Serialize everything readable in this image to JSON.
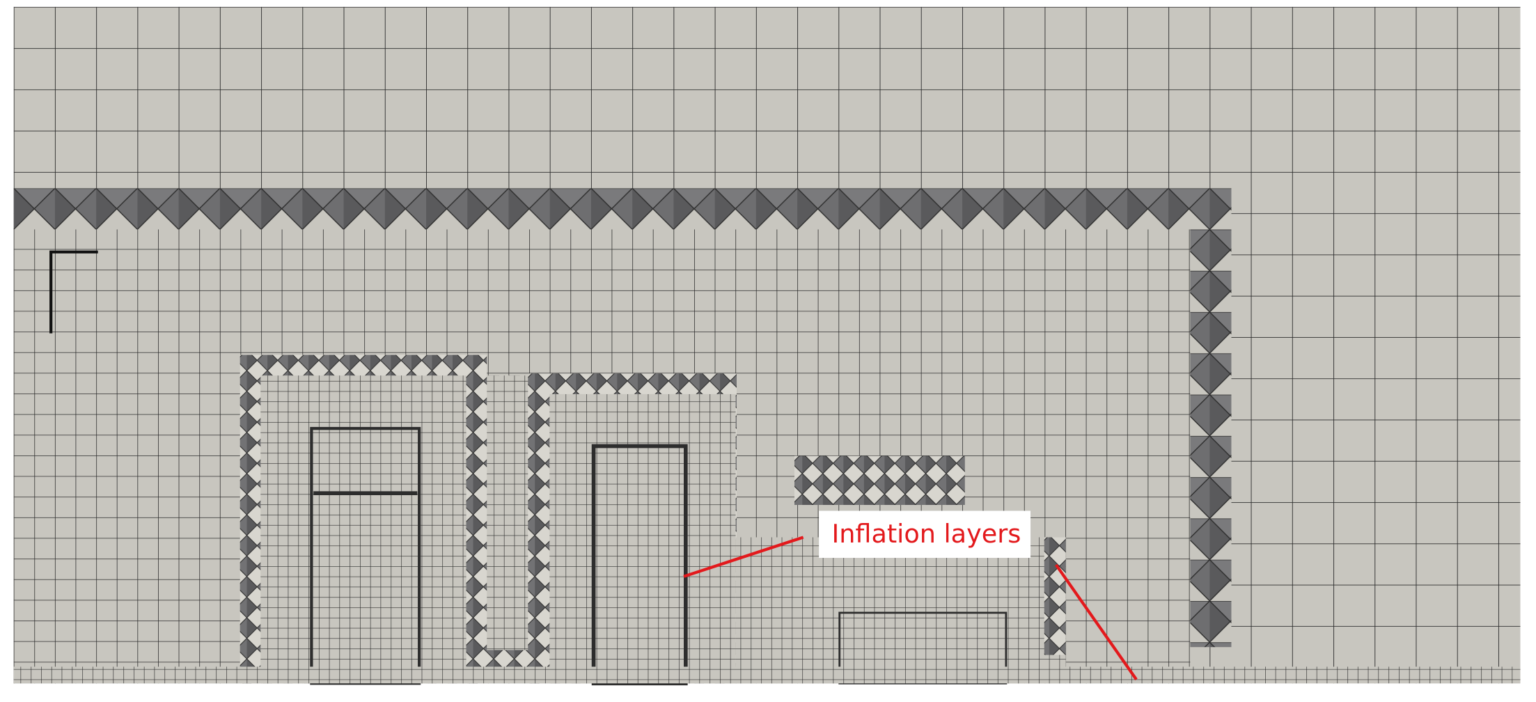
{
  "annotation": {
    "label": "Inflation layers"
  }
}
